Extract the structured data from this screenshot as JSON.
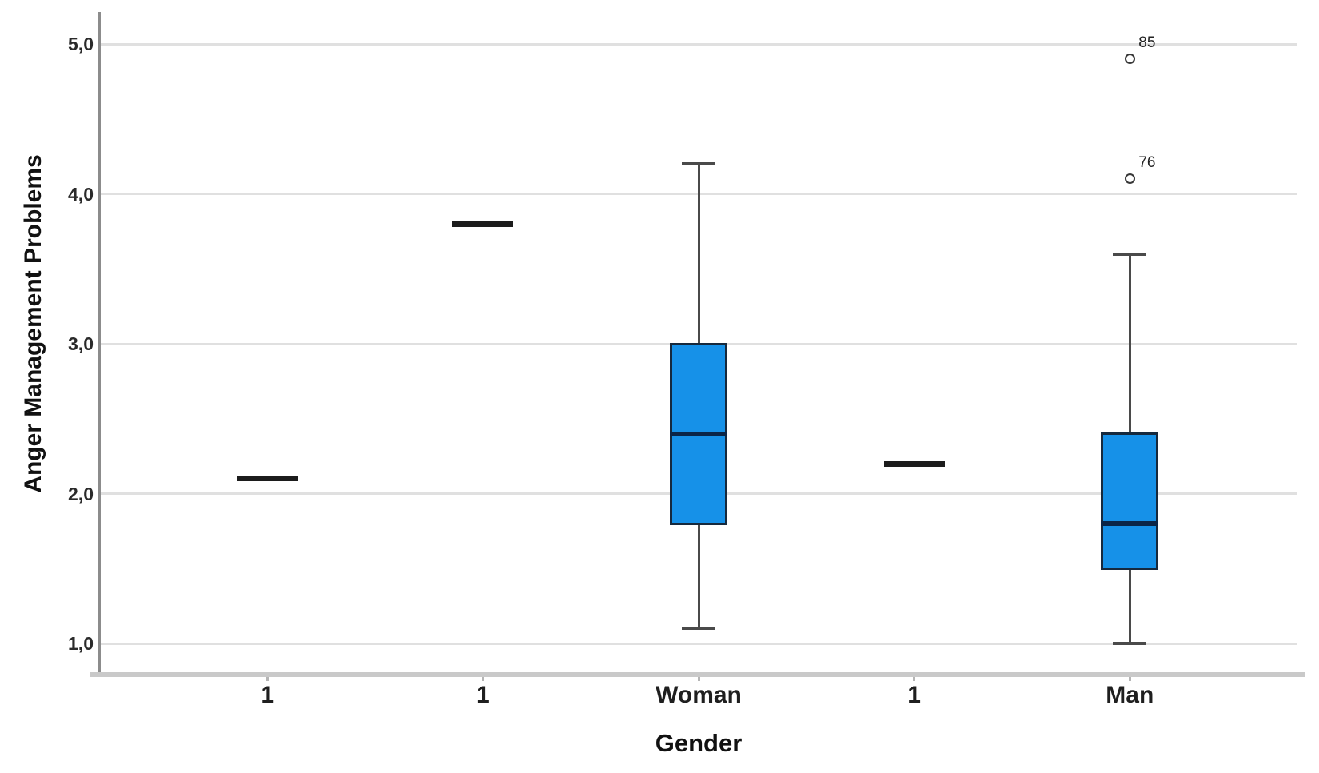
{
  "chart_data": {
    "type": "boxplot",
    "title": "",
    "xlabel": "Gender",
    "ylabel": "Anger Management Problems",
    "categories": [
      "1",
      "1",
      "Woman",
      "1",
      "Man"
    ],
    "yticks": [
      {
        "value": 1.0,
        "label": "1,0"
      },
      {
        "value": 2.0,
        "label": "2,0"
      },
      {
        "value": 3.0,
        "label": "3,0"
      },
      {
        "value": 4.0,
        "label": "4,0"
      },
      {
        "value": 5.0,
        "label": "5,0"
      }
    ],
    "ylim": [
      0.8,
      5.2
    ],
    "grid": "horizontal",
    "legend": "none",
    "series": [
      {
        "category": "1",
        "type": "median-only",
        "median": 2.1
      },
      {
        "category": "1",
        "type": "median-only",
        "median": 3.8
      },
      {
        "category": "Woman",
        "type": "box",
        "q1": 1.8,
        "median": 2.4,
        "q3": 3.0,
        "whisker_low": 1.1,
        "whisker_high": 4.2,
        "outliers": []
      },
      {
        "category": "1",
        "type": "median-only",
        "median": 2.2
      },
      {
        "category": "Man",
        "type": "box",
        "q1": 1.5,
        "median": 1.8,
        "q3": 2.4,
        "whisker_low": 1.0,
        "whisker_high": 3.6,
        "outliers": [
          {
            "value": 4.1,
            "label": "76"
          },
          {
            "value": 4.9,
            "label": "85"
          }
        ]
      }
    ],
    "colors": {
      "box_fill": "#1691e8",
      "box_border": "#16293d",
      "median": "#0b2547",
      "median_only": "#1c1c1c",
      "whisker": "#4a4a4a",
      "gridline": "#e0e0e0",
      "axis_line": "#8c8c8c",
      "baseline": "#c9c9c9",
      "text": "#1f1f1f"
    }
  }
}
